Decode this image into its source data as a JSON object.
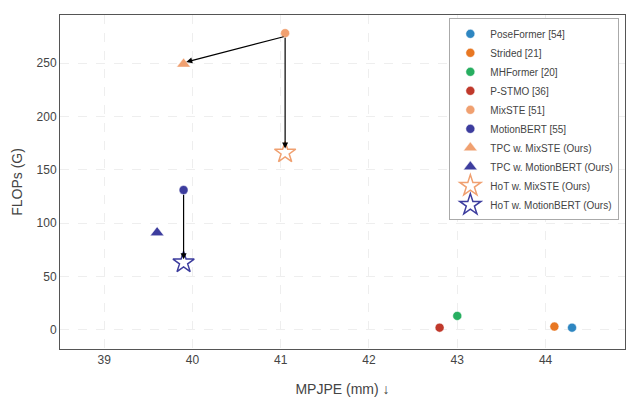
{
  "chart_data": {
    "type": "scatter",
    "title": "",
    "xlabel": "MPJPE (mm) ↓",
    "ylabel": "FLOPs (G)",
    "xlim": [
      38.5,
      44.9
    ],
    "ylim": [
      -18,
      295
    ],
    "xticks": [
      39,
      40,
      41,
      42,
      43,
      44
    ],
    "yticks": [
      0,
      50,
      100,
      150,
      200,
      250
    ],
    "grid": true,
    "legend": "upper right",
    "series": [
      {
        "name": "PoseFormer [54]",
        "color": "#2e86c1",
        "marker": "circle",
        "x": [
          44.3
        ],
        "values": [
          2
        ]
      },
      {
        "name": "Strided [21]",
        "color": "#e87722",
        "marker": "circle",
        "x": [
          44.1
        ],
        "values": [
          3
        ]
      },
      {
        "name": "MHFormer [20]",
        "color": "#27ae60",
        "marker": "circle",
        "x": [
          43.0
        ],
        "values": [
          13
        ]
      },
      {
        "name": "P-STMO [36]",
        "color": "#c0392b",
        "marker": "circle",
        "x": [
          42.8
        ],
        "values": [
          2
        ]
      },
      {
        "name": "MixSTE [51]",
        "color": "#f0a070",
        "marker": "circle",
        "x": [
          41.05
        ],
        "values": [
          278
        ]
      },
      {
        "name": "MotionBERT [55]",
        "color": "#3d3d9e",
        "marker": "circle",
        "x": [
          39.9
        ],
        "values": [
          131
        ]
      },
      {
        "name": "TPC w. MixSTE (Ours)",
        "color": "#f0a070",
        "marker": "triangle-up",
        "x": [
          39.9
        ],
        "values": [
          249
        ]
      },
      {
        "name": "TPC w. MotionBERT (Ours)",
        "color": "#3d3d9e",
        "marker": "triangle-up",
        "x": [
          39.6
        ],
        "values": [
          91
        ]
      },
      {
        "name": "HoT w. MixSTE (Ours)",
        "color": "#f0a070",
        "marker": "star-open",
        "x": [
          41.05
        ],
        "values": [
          166
        ]
      },
      {
        "name": "HoT w. MotionBERT (Ours)",
        "color": "#3d3d9e",
        "marker": "star-open",
        "x": [
          39.9
        ],
        "values": [
          63
        ]
      }
    ],
    "arrows": [
      {
        "x_start": 41.05,
        "y_start": 275,
        "x_end": 41.05,
        "y_end": 170
      },
      {
        "x_start": 39.9,
        "y_start": 128,
        "x_end": 39.9,
        "y_end": 66
      },
      {
        "x_start": 41.05,
        "y_start": 275,
        "x_end": 39.93,
        "y_end": 251
      }
    ]
  }
}
